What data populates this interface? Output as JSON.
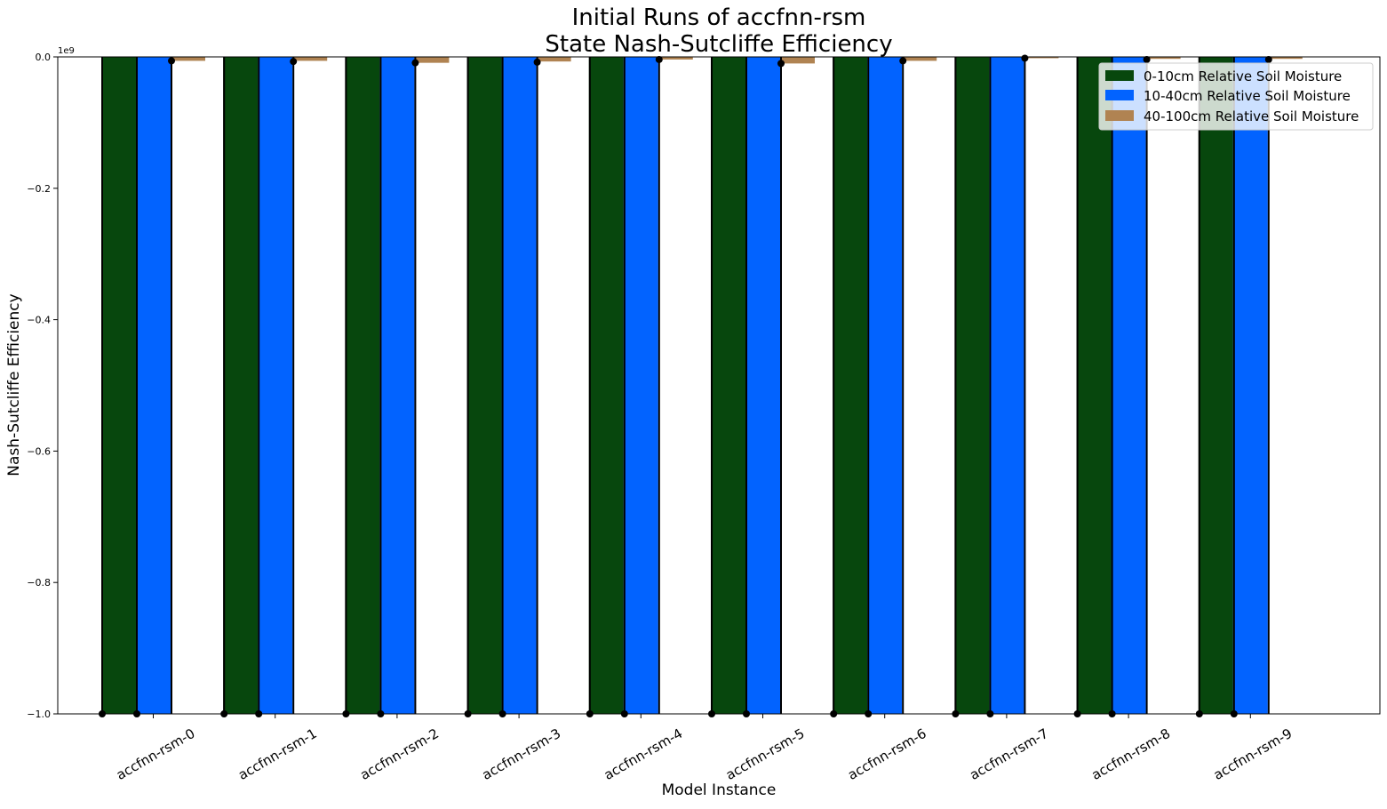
{
  "chart_data": {
    "type": "bar",
    "title_lines": [
      "Initial Runs of accfnn-rsm",
      "State Nash-Sutcliffe Efficiency"
    ],
    "xlabel": "Model Instance",
    "ylabel": "Nash-Sutcliffe Efficiency",
    "y_offset_label": "1e9",
    "y_scale": 1000000000,
    "ylim": [
      -1.0,
      0.0
    ],
    "yticks": [
      0.0,
      -0.2,
      -0.4,
      -0.6,
      -0.8,
      -1.0
    ],
    "ytick_labels": [
      "0.0",
      "−0.2",
      "−0.4",
      "−0.6",
      "−0.8",
      "−1.0"
    ],
    "grid": false,
    "legend_position": "top-right",
    "categories": [
      "accfnn-rsm-0",
      "accfnn-rsm-1",
      "accfnn-rsm-2",
      "accfnn-rsm-3",
      "accfnn-rsm-4",
      "accfnn-rsm-5",
      "accfnn-rsm-6",
      "accfnn-rsm-7",
      "accfnn-rsm-8",
      "accfnn-rsm-9"
    ],
    "series": [
      {
        "name": "0-10cm Relative Soil Moisture",
        "color": "#07470d",
        "values": [
          -1.0,
          -1.0,
          -1.0,
          -1.0,
          -1.0,
          -1.0,
          -1.0,
          -1.0,
          -1.0,
          -1.0
        ],
        "means": [
          -1.0,
          -1.0,
          -1.0,
          -1.0,
          -1.0,
          -1.0,
          -1.0,
          -1.0,
          -1.0,
          -1.0
        ]
      },
      {
        "name": "10-40cm Relative Soil Moisture",
        "color": "#0263ff",
        "values": [
          -1.0,
          -1.0,
          -1.0,
          -1.0,
          -1.0,
          -1.0,
          -1.0,
          -1.0,
          -1.0,
          -1.0
        ],
        "means": [
          -1.0,
          -1.0,
          -1.0,
          -1.0,
          -1.0,
          -1.0,
          -1.0,
          -1.0,
          -1.0,
          -1.0
        ]
      },
      {
        "name": "40-100cm Relative Soil Moisture",
        "color": "#b08352",
        "values": [
          -0.006,
          -0.006,
          -0.009,
          -0.007,
          -0.004,
          -0.01,
          -0.006,
          -0.002,
          -0.003,
          -0.003
        ],
        "means": [
          -0.006,
          -0.007,
          -0.009,
          -0.008,
          -0.004,
          -0.01,
          -0.006,
          -0.002,
          -0.004,
          -0.004
        ]
      }
    ]
  }
}
